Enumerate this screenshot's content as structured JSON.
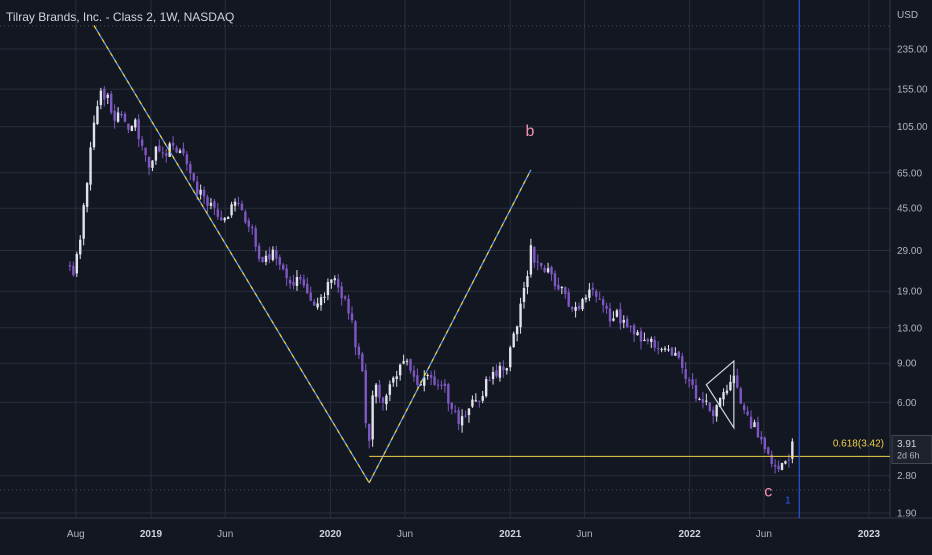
{
  "header": {
    "title": "Tilray Brands, Inc. - Class 2, 1W, NASDAQ"
  },
  "axis": {
    "currency": "USD"
  },
  "colors": {
    "background": "#131722",
    "grid": "#2a2e39",
    "up": "#e0e3eb",
    "down": "#7e57c2",
    "wave_line": "#5b9cf6",
    "wave_line_alt": "#f0d048",
    "fib": "#f0d048",
    "label": "#f48fb1",
    "vertical_marker": "#2962ff"
  },
  "chart_data": {
    "type": "candlestick",
    "scale": "log",
    "y_ticks": [
      235,
      155,
      105,
      65,
      45,
      29,
      19,
      13,
      9,
      6,
      3.91,
      2.8,
      1.9
    ],
    "y_tick_labels": [
      "235.00",
      "155.00",
      "105.00",
      "65.00",
      "45.00",
      "29.00",
      "19.00",
      "13.00",
      "9.00",
      "6.00",
      "3.91",
      "2.80",
      "1.90"
    ],
    "x_ticks": [
      {
        "label": "Aug",
        "date": "2018-08-01",
        "bold": false
      },
      {
        "label": "2019",
        "date": "2019-01-01",
        "bold": true
      },
      {
        "label": "Jun",
        "date": "2019-06-01",
        "bold": false
      },
      {
        "label": "2020",
        "date": "2020-01-01",
        "bold": true
      },
      {
        "label": "Jun",
        "date": "2020-06-01",
        "bold": false
      },
      {
        "label": "2021",
        "date": "2021-01-01",
        "bold": true
      },
      {
        "label": "Jun",
        "date": "2021-06-01",
        "bold": false
      },
      {
        "label": "2022",
        "date": "2022-01-01",
        "bold": true
      },
      {
        "label": "Jun",
        "date": "2022-06-01",
        "bold": false
      },
      {
        "label": "2023",
        "date": "2023-01-01",
        "bold": true
      }
    ],
    "price_path": [
      [
        "2018-07-20",
        25
      ],
      [
        "2018-07-27",
        23
      ],
      [
        "2018-08-03",
        28
      ],
      [
        "2018-08-10",
        32
      ],
      [
        "2018-08-17",
        45
      ],
      [
        "2018-08-24",
        60
      ],
      [
        "2018-08-31",
        85
      ],
      [
        "2018-09-07",
        110
      ],
      [
        "2018-09-14",
        130
      ],
      [
        "2018-09-21",
        155
      ],
      [
        "2018-09-28",
        140
      ],
      [
        "2018-10-05",
        150
      ],
      [
        "2018-10-12",
        125
      ],
      [
        "2018-10-19",
        110
      ],
      [
        "2018-10-26",
        115
      ],
      [
        "2018-11-02",
        118
      ],
      [
        "2018-11-16",
        100
      ],
      [
        "2018-11-30",
        110
      ],
      [
        "2018-12-14",
        85
      ],
      [
        "2018-12-28",
        72
      ],
      [
        "2019-01-11",
        82
      ],
      [
        "2019-01-25",
        76
      ],
      [
        "2019-02-08",
        85
      ],
      [
        "2019-02-22",
        80
      ],
      [
        "2019-03-08",
        75
      ],
      [
        "2019-03-22",
        68
      ],
      [
        "2019-04-05",
        55
      ],
      [
        "2019-04-19",
        50
      ],
      [
        "2019-05-03",
        48
      ],
      [
        "2019-05-17",
        42
      ],
      [
        "2019-05-31",
        40
      ],
      [
        "2019-06-14",
        47
      ],
      [
        "2019-06-28",
        45
      ],
      [
        "2019-07-12",
        40
      ],
      [
        "2019-07-26",
        35
      ],
      [
        "2019-08-09",
        28
      ],
      [
        "2019-08-23",
        26
      ],
      [
        "2019-09-06",
        28
      ],
      [
        "2019-09-20",
        24
      ],
      [
        "2019-10-04",
        22
      ],
      [
        "2019-10-18",
        21
      ],
      [
        "2019-11-01",
        21
      ],
      [
        "2019-11-15",
        18
      ],
      [
        "2019-11-29",
        17
      ],
      [
        "2019-12-13",
        17
      ],
      [
        "2019-12-27",
        20
      ],
      [
        "2020-01-10",
        22
      ],
      [
        "2020-01-24",
        18
      ],
      [
        "2020-02-07",
        16
      ],
      [
        "2020-02-21",
        11
      ],
      [
        "2020-03-06",
        8
      ],
      [
        "2020-03-13",
        5
      ],
      [
        "2020-03-20",
        3.9
      ],
      [
        "2020-03-27",
        6.5
      ],
      [
        "2020-04-03",
        7
      ],
      [
        "2020-04-17",
        6.2
      ],
      [
        "2020-05-01",
        7.5
      ],
      [
        "2020-05-15",
        8
      ],
      [
        "2020-05-29",
        9.5
      ],
      [
        "2020-06-12",
        8.2
      ],
      [
        "2020-06-26",
        7.3
      ],
      [
        "2020-07-10",
        7.8
      ],
      [
        "2020-07-24",
        8
      ],
      [
        "2020-08-07",
        6.8
      ],
      [
        "2020-08-21",
        7
      ],
      [
        "2020-09-04",
        5.5
      ],
      [
        "2020-09-18",
        5
      ],
      [
        "2020-10-02",
        5.5
      ],
      [
        "2020-10-16",
        6.5
      ],
      [
        "2020-10-30",
        5.8
      ],
      [
        "2020-11-13",
        7.5
      ],
      [
        "2020-11-27",
        8
      ],
      [
        "2020-12-11",
        8.5
      ],
      [
        "2020-12-25",
        9
      ],
      [
        "2021-01-08",
        12
      ],
      [
        "2021-01-22",
        16
      ],
      [
        "2021-02-05",
        22
      ],
      [
        "2021-02-12",
        30
      ],
      [
        "2021-02-19",
        26
      ],
      [
        "2021-03-05",
        24
      ],
      [
        "2021-03-19",
        25
      ],
      [
        "2021-04-02",
        21
      ],
      [
        "2021-04-16",
        19
      ],
      [
        "2021-04-30",
        17
      ],
      [
        "2021-05-14",
        16
      ],
      [
        "2021-05-28",
        17
      ],
      [
        "2021-06-11",
        19
      ],
      [
        "2021-06-25",
        18
      ],
      [
        "2021-07-09",
        16
      ],
      [
        "2021-07-23",
        14.5
      ],
      [
        "2021-08-06",
        15
      ],
      [
        "2021-08-20",
        13.5
      ],
      [
        "2021-09-03",
        13
      ],
      [
        "2021-09-17",
        12
      ],
      [
        "2021-10-01",
        11.5
      ],
      [
        "2021-10-15",
        11
      ],
      [
        "2021-10-29",
        10
      ],
      [
        "2021-11-12",
        10.5
      ],
      [
        "2021-11-26",
        10
      ],
      [
        "2021-12-10",
        9
      ],
      [
        "2021-12-24",
        7.5
      ],
      [
        "2022-01-07",
        7
      ],
      [
        "2022-01-21",
        6.2
      ],
      [
        "2022-02-04",
        5.8
      ],
      [
        "2022-02-18",
        5.5
      ],
      [
        "2022-03-04",
        6.5
      ],
      [
        "2022-03-18",
        7
      ],
      [
        "2022-04-01",
        7.5
      ],
      [
        "2022-04-15",
        6
      ],
      [
        "2022-04-29",
        5
      ],
      [
        "2022-05-13",
        4.6
      ],
      [
        "2022-05-27",
        4.2
      ],
      [
        "2022-06-10",
        3.5
      ],
      [
        "2022-06-24",
        3.2
      ],
      [
        "2022-07-08",
        3.1
      ],
      [
        "2022-07-22",
        3.3
      ],
      [
        "2022-07-29",
        3.91
      ]
    ],
    "candle_range": {
      "start": "2018-07-20",
      "end": "2022-07-29"
    },
    "wave_points": [
      {
        "date": "2018-09-07",
        "price": 300
      },
      {
        "date": "2020-03-20",
        "price": 2.6
      },
      {
        "date": "2021-02-12",
        "price": 67
      }
    ],
    "wave_labels": [
      {
        "text": "b",
        "date": "2021-02-10",
        "price": 95
      },
      {
        "text": "c",
        "date": "2022-06-10",
        "price": 2.25
      },
      {
        "text": "1",
        "date": "2022-07-20",
        "price": 2.1
      }
    ],
    "fib_level": {
      "label": "0.618(3.42)",
      "price": 3.42,
      "start": "2020-03-20"
    },
    "current_price": {
      "label": "3.91",
      "price": 3.91,
      "countdown": "2d 6h"
    },
    "vertical_marker_date": "2022-08-12",
    "triangle": [
      {
        "date": "2022-02-04",
        "price": 7.2
      },
      {
        "date": "2022-04-01",
        "price": 9.2
      },
      {
        "date": "2022-04-01",
        "price": 4.6
      }
    ]
  }
}
